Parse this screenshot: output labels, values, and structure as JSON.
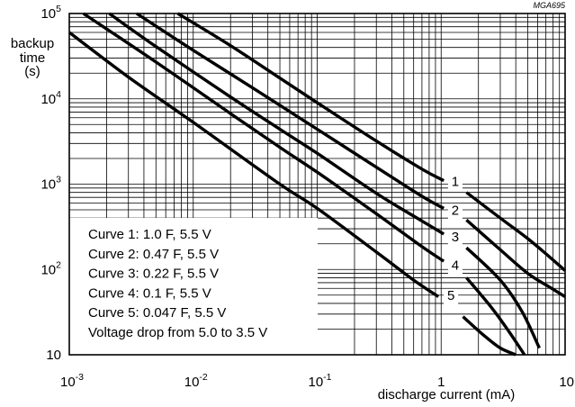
{
  "figure_code": "MGA695",
  "chart_data": {
    "type": "line",
    "title": "",
    "xlabel": "discharge current  (mA)",
    "ylabel_lines": [
      "backup",
      "time",
      "(s)"
    ],
    "x_scale": "log",
    "y_scale": "log",
    "xlim": [
      0.001,
      10
    ],
    "ylim": [
      10,
      100000
    ],
    "grid": true,
    "x_ticks": [
      {
        "value": 0.001,
        "base": "10",
        "exp": "-3"
      },
      {
        "value": 0.01,
        "base": "10",
        "exp": "-2"
      },
      {
        "value": 0.1,
        "base": "10",
        "exp": "-1"
      },
      {
        "value": 1,
        "base": "1",
        "exp": ""
      },
      {
        "value": 10,
        "base": "10",
        "exp": ""
      }
    ],
    "y_ticks": [
      {
        "value": 10,
        "base": "10",
        "exp": ""
      },
      {
        "value": 100,
        "base": "10",
        "exp": "2"
      },
      {
        "value": 1000,
        "base": "10",
        "exp": "3"
      },
      {
        "value": 10000,
        "base": "10",
        "exp": "4"
      },
      {
        "value": 100000,
        "base": "10",
        "exp": "5"
      }
    ],
    "series": [
      {
        "name": "1",
        "x": [
          0.0075,
          0.02,
          0.05,
          0.1,
          0.3,
          0.7,
          1.05
        ],
        "y": [
          100000,
          42000,
          17500,
          9000,
          3200,
          1500,
          1100
        ]
      },
      {
        "name": "1",
        "x": [
          1.6,
          3,
          5,
          7.5,
          10
        ],
        "y": [
          800,
          400,
          230,
          140,
          97
        ]
      },
      {
        "name": "2",
        "x": [
          0.0035,
          0.01,
          0.03,
          0.1,
          0.3,
          0.7,
          1.05
        ],
        "y": [
          100000,
          37000,
          13500,
          4400,
          1580,
          720,
          520
        ]
      },
      {
        "name": "2",
        "x": [
          1.6,
          3,
          5,
          7.5,
          10
        ],
        "y": [
          380,
          170,
          90,
          62,
          48
        ]
      },
      {
        "name": "3",
        "x": [
          0.0021,
          0.005,
          0.02,
          0.05,
          0.1,
          0.3,
          0.7,
          1.05
        ],
        "y": [
          100000,
          41000,
          10500,
          4400,
          2300,
          780,
          370,
          260
        ]
      },
      {
        "name": "3",
        "x": [
          1.6,
          3,
          4.5,
          6.2
        ],
        "y": [
          180,
          75,
          32,
          12
        ]
      },
      {
        "name": "4",
        "x": [
          0.0013,
          0.005,
          0.02,
          0.05,
          0.1,
          0.3,
          0.7,
          1.05
        ],
        "y": [
          100000,
          27000,
          6700,
          2700,
          1380,
          450,
          185,
          125
        ]
      },
      {
        "name": "4",
        "x": [
          1.6,
          2.5,
          3.5,
          4.7
        ],
        "y": [
          80,
          37,
          19,
          10
        ]
      },
      {
        "name": "5",
        "x": [
          0.001,
          0.003,
          0.01,
          0.05,
          0.1,
          0.3,
          0.6,
          0.95
        ],
        "y": [
          60000,
          18000,
          5300,
          1000,
          520,
          160,
          75,
          48
        ]
      },
      {
        "name": "5",
        "x": [
          1.5,
          2.2,
          3,
          4
        ],
        "y": [
          28,
          17,
          12,
          10
        ]
      }
    ],
    "curve_labels": [
      {
        "text": "1",
        "x": 1.3,
        "y": 950
      },
      {
        "text": "2",
        "x": 1.3,
        "y": 440
      },
      {
        "text": "3",
        "x": 1.3,
        "y": 215
      },
      {
        "text": "4",
        "x": 1.3,
        "y": 100
      },
      {
        "text": "5",
        "x": 1.2,
        "y": 44
      }
    ],
    "legend": {
      "placement": "bottom-left",
      "lines": [
        "Curve 1:  1.0 F, 5.5 V",
        "Curve 2:  0.47 F, 5.5 V",
        "Curve 3:  0.22 F, 5.5 V",
        "Curve 4:  0.1 F, 5.5 V",
        "Curve 5:  0.047 F, 5.5 V",
        "Voltage drop from 5.0 to 3.5 V"
      ]
    }
  }
}
